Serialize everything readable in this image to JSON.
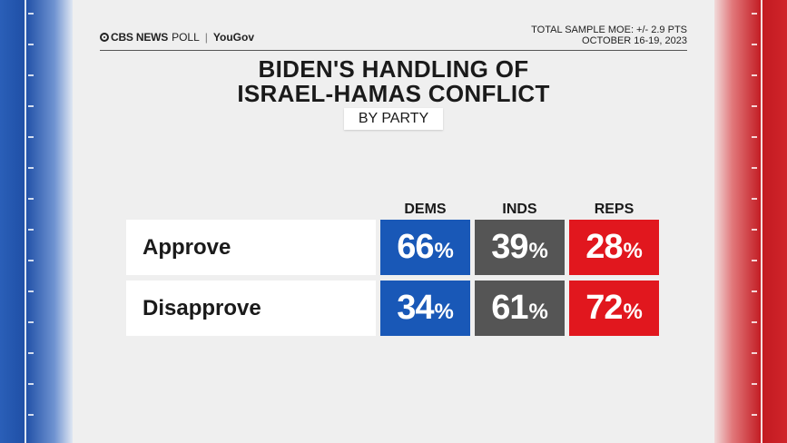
{
  "header": {
    "brand": "CBS NEWS",
    "poll": "POLL",
    "partner": "YouGov",
    "moe": "TOTAL SAMPLE MOE: +/- 2.9 PTS",
    "dates": "OCTOBER 16-19, 2023"
  },
  "colors": {
    "dems": "#1958b7",
    "inds": "#555555",
    "reps": "#e1171e"
  },
  "chart_data": {
    "type": "table",
    "title_lines": [
      "BIDEN'S HANDLING OF",
      "ISRAEL-HAMAS CONFLICT"
    ],
    "subtitle": "BY PARTY",
    "columns": [
      "DEMS",
      "INDS",
      "REPS"
    ],
    "rows": [
      {
        "label": "Approve",
        "values": [
          66,
          39,
          28
        ]
      },
      {
        "label": "Disapprove",
        "values": [
          34,
          61,
          72
        ]
      }
    ],
    "unit": "%"
  }
}
